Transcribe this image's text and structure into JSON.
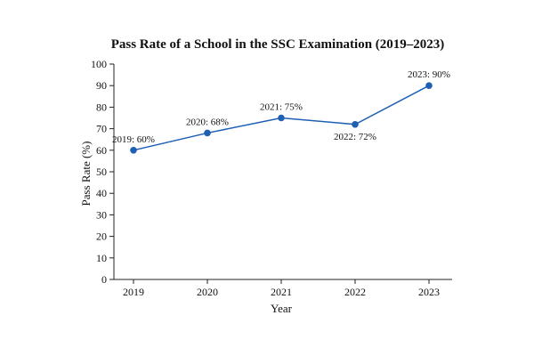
{
  "chart_data": {
    "type": "line",
    "title": "Pass Rate of a School in the SSC Examination (2019–2023)",
    "xlabel": "Year",
    "ylabel": "Pass Rate (%)",
    "categories": [
      "2019",
      "2020",
      "2021",
      "2022",
      "2023"
    ],
    "series": [
      {
        "values": [
          60,
          68,
          75,
          72,
          90
        ]
      }
    ],
    "data_labels": [
      "2019: 60%",
      "2020: 68%",
      "2021: 75%",
      "2022: 72%",
      "2023: 90%"
    ],
    "ylim": [
      0,
      100
    ],
    "yticks": [
      0,
      10,
      20,
      30,
      40,
      50,
      60,
      70,
      80,
      90,
      100
    ],
    "grid": false,
    "line_color": "#1f5fb4",
    "marker_color": "#1f5fb4"
  }
}
